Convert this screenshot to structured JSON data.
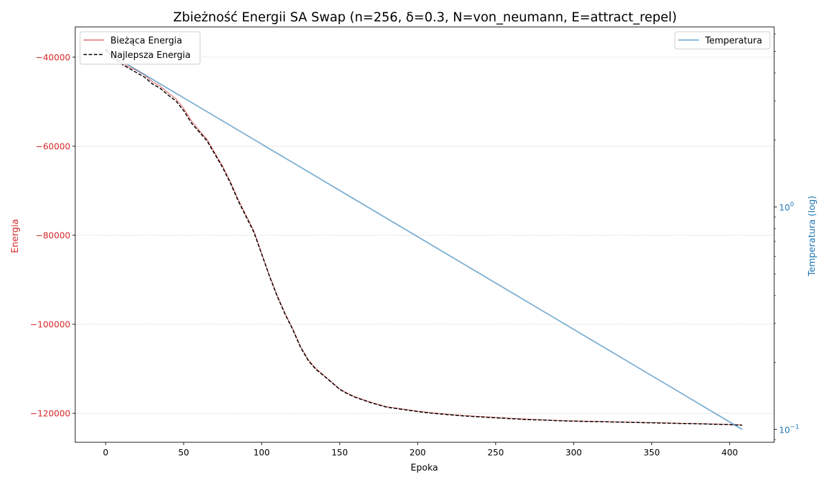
{
  "chart_data": {
    "type": "line",
    "title": "Zbieżność Energii SA Swap (n=256, δ=0.3, N=von_neumann, E=attract_repel)",
    "xlabel": "Epoka",
    "ylabel": "Energia",
    "y2label": "Temperatura (log)",
    "xlim": [
      -19.5,
      428.5
    ],
    "ylim": [
      -126500,
      -33200
    ],
    "y2lim": [
      0.0875,
      6.45
    ],
    "y2scale": "log",
    "xticks": [
      0,
      50,
      100,
      150,
      200,
      250,
      300,
      350,
      400
    ],
    "xtick_labels": [
      "0",
      "50",
      "100",
      "150",
      "200",
      "250",
      "300",
      "350",
      "400"
    ],
    "yticks": [
      -40000,
      -60000,
      -80000,
      -100000,
      -120000
    ],
    "ytick_labels": [
      "−40000",
      "−60000",
      "−80000",
      "−100000",
      "−120000"
    ],
    "y2ticks": [
      1,
      0.1
    ],
    "y2tick_labels": [
      "10^0",
      "10^−1"
    ],
    "grid": "y-dotted",
    "colors": {
      "current": "#d62728",
      "best": "#000000",
      "temperature": "#1f77b4",
      "left_axis": "#d62728",
      "right_axis": "#1f77b4"
    },
    "legends": [
      {
        "placement": "upper-left",
        "entries": [
          "Bieżąca Energia",
          "Najlepsza Energia"
        ]
      },
      {
        "placement": "upper-right",
        "entries": [
          "Temperatura"
        ]
      }
    ],
    "series": [
      {
        "name": "Bieżąca Energia",
        "axis": "left",
        "style": "solid-thin",
        "x": [
          0,
          5,
          10,
          15,
          20,
          25,
          30,
          35,
          40,
          45,
          50,
          55,
          60,
          65,
          70,
          75,
          80,
          85,
          90,
          95,
          100,
          105,
          110,
          115,
          120,
          125,
          130,
          135,
          140,
          145,
          150,
          155,
          160,
          170,
          180,
          190,
          200,
          210,
          220,
          230,
          240,
          250,
          260,
          270,
          280,
          290,
          300,
          320,
          340,
          360,
          380,
          400,
          408
        ],
        "y": [
          -38200,
          -39800,
          -41200,
          -42200,
          -43000,
          -44000,
          -45500,
          -46500,
          -48000,
          -49300,
          -51500,
          -54300,
          -56500,
          -58500,
          -61500,
          -64500,
          -68000,
          -72000,
          -75500,
          -79000,
          -84000,
          -89000,
          -93500,
          -97500,
          -101000,
          -105000,
          -108000,
          -110000,
          -111500,
          -113000,
          -114500,
          -115500,
          -116300,
          -117500,
          -118500,
          -119000,
          -119500,
          -119900,
          -120200,
          -120500,
          -120700,
          -120900,
          -121100,
          -121300,
          -121450,
          -121600,
          -121700,
          -121850,
          -122000,
          -122150,
          -122300,
          -122500,
          -122600
        ]
      },
      {
        "name": "Najlepsza Energia",
        "axis": "left",
        "style": "dashed",
        "x": [
          0,
          5,
          10,
          15,
          20,
          25,
          30,
          35,
          40,
          45,
          50,
          55,
          60,
          65,
          70,
          75,
          80,
          85,
          90,
          95,
          100,
          105,
          110,
          115,
          120,
          125,
          130,
          135,
          140,
          145,
          150,
          155,
          160,
          170,
          180,
          190,
          200,
          210,
          220,
          230,
          240,
          250,
          260,
          270,
          280,
          290,
          300,
          320,
          340,
          360,
          380,
          400,
          408
        ],
        "y": [
          -38200,
          -40200,
          -41500,
          -42500,
          -43500,
          -44500,
          -46000,
          -47000,
          -48500,
          -49800,
          -52000,
          -54800,
          -56800,
          -58800,
          -61800,
          -64800,
          -68300,
          -72300,
          -75800,
          -79300,
          -84200,
          -89200,
          -93700,
          -97700,
          -101200,
          -105200,
          -108200,
          -110200,
          -111600,
          -113100,
          -114600,
          -115600,
          -116400,
          -117600,
          -118600,
          -119100,
          -119600,
          -120000,
          -120300,
          -120600,
          -120800,
          -121000,
          -121200,
          -121400,
          -121500,
          -121650,
          -121750,
          -121900,
          -122050,
          -122200,
          -122350,
          -122550,
          -122650
        ]
      },
      {
        "name": "Temperatura",
        "axis": "right",
        "style": "solid",
        "x": [
          0,
          408
        ],
        "y": [
          5.0,
          0.1
        ]
      }
    ]
  }
}
